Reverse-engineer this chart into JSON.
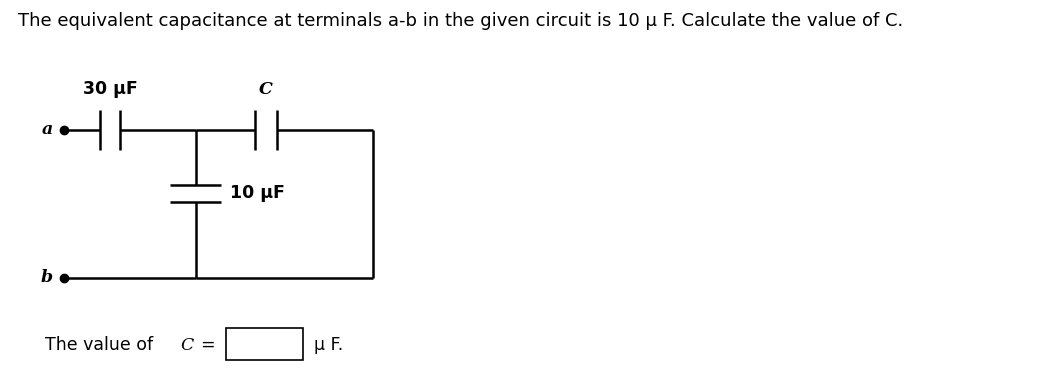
{
  "title_plain": "The equivalent capacitance at terminals a-b in the given circuit is 10 μ F. Calculate the value of C.",
  "label_30uF": "30 μF",
  "label_C": "C",
  "label_10uF": "10 μF",
  "label_a": "a",
  "label_b": "b",
  "bg_color": "#ffffff",
  "line_color": "#000000",
  "font_size_title": 13.0,
  "font_size_labels": 12.5,
  "font_size_answer": 12.5
}
